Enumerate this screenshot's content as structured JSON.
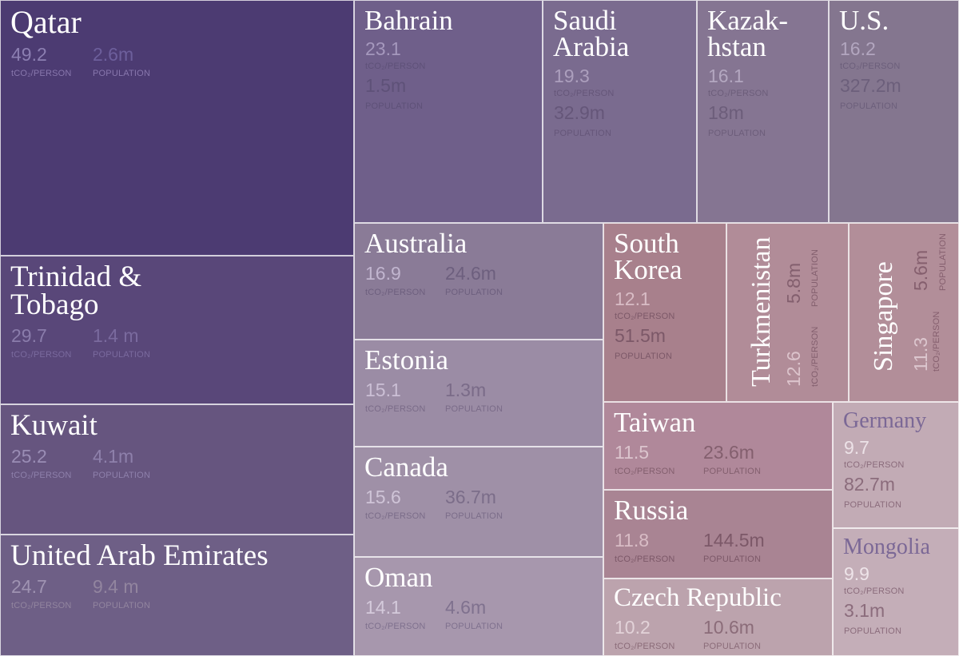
{
  "chart_data": {
    "type": "treemap",
    "value_label": "tCO₂/PERSON",
    "secondary_label": "POPULATION",
    "items": [
      {
        "name": "Qatar",
        "co2_per_person": "49.2",
        "population": "2.6m"
      },
      {
        "name": "Trinidad & Tobago",
        "co2_per_person": "29.7",
        "population": "1.4 m"
      },
      {
        "name": "Kuwait",
        "co2_per_person": "25.2",
        "population": "4.1m"
      },
      {
        "name": "United Arab Emirates",
        "co2_per_person": "24.7",
        "population": "9.4 m"
      },
      {
        "name": "Bahrain",
        "co2_per_person": "23.1",
        "population": "1.5m"
      },
      {
        "name": "Saudi Arabia",
        "co2_per_person": "19.3",
        "population": "32.9m"
      },
      {
        "name": "Kazakhstan",
        "co2_per_person": "16.1",
        "population": "18m"
      },
      {
        "name": "U.S.",
        "co2_per_person": "16.2",
        "population": "327.2m"
      },
      {
        "name": "Australia",
        "co2_per_person": "16.9",
        "population": "24.6m"
      },
      {
        "name": "Estonia",
        "co2_per_person": "15.1",
        "population": "1.3m"
      },
      {
        "name": "Canada",
        "co2_per_person": "15.6",
        "population": "36.7m"
      },
      {
        "name": "Oman",
        "co2_per_person": "14.1",
        "population": "4.6m"
      },
      {
        "name": "South Korea",
        "co2_per_person": "12.1",
        "population": "51.5m"
      },
      {
        "name": "Turkmenistan",
        "co2_per_person": "12.6",
        "population": "5.8m"
      },
      {
        "name": "Singapore",
        "co2_per_person": "11.3",
        "population": "5.6m"
      },
      {
        "name": "Taiwan",
        "co2_per_person": "11.5",
        "population": "23.6m"
      },
      {
        "name": "Russia",
        "co2_per_person": "11.8",
        "population": "144.5m"
      },
      {
        "name": "Czech Republic",
        "co2_per_person": "10.2",
        "population": "10.6m"
      },
      {
        "name": "Germany",
        "co2_per_person": "9.7",
        "population": "82.7m"
      },
      {
        "name": "Mongolia",
        "co2_per_person": "9.9",
        "population": "3.1m"
      }
    ]
  }
}
